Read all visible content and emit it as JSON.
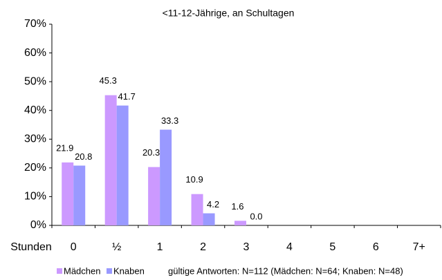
{
  "chart_data": {
    "type": "bar",
    "title": "<11-12-Jährige, an Schultagen",
    "x_label": "Stunden",
    "note": "gültige Antworten: N=112 (Mädchen: N=64; Knaben: N=48)",
    "categories": [
      "0",
      "½",
      "1",
      "2",
      "3",
      "4",
      "5",
      "6",
      "7+"
    ],
    "series": [
      {
        "name": "Mädchen",
        "color": "#cc99ff",
        "values": [
          21.9,
          45.3,
          20.3,
          10.9,
          1.6,
          null,
          null,
          null,
          null
        ],
        "value_labels": [
          "21.9",
          "45.3",
          "20.3",
          "10.9",
          "1.6",
          null,
          null,
          null,
          null
        ]
      },
      {
        "name": "Knaben",
        "color": "#9999ff",
        "values": [
          20.8,
          41.7,
          33.3,
          4.2,
          0,
          null,
          null,
          null,
          null
        ],
        "value_labels": [
          "20.8",
          "41.7",
          "33.3",
          "4.2",
          "0.0",
          null,
          null,
          null,
          null
        ]
      }
    ],
    "ylim": [
      0,
      70
    ],
    "yticks": [
      {
        "value": 0,
        "label": "0%"
      },
      {
        "value": 10,
        "label": "10%"
      },
      {
        "value": 20,
        "label": "20%"
      },
      {
        "value": 30,
        "label": "30%"
      },
      {
        "value": 40,
        "label": "40%"
      },
      {
        "value": 50,
        "label": "50%"
      },
      {
        "value": 60,
        "label": "60%"
      },
      {
        "value": 70,
        "label": "70%"
      }
    ],
    "grid": false,
    "legend": "bottom"
  }
}
